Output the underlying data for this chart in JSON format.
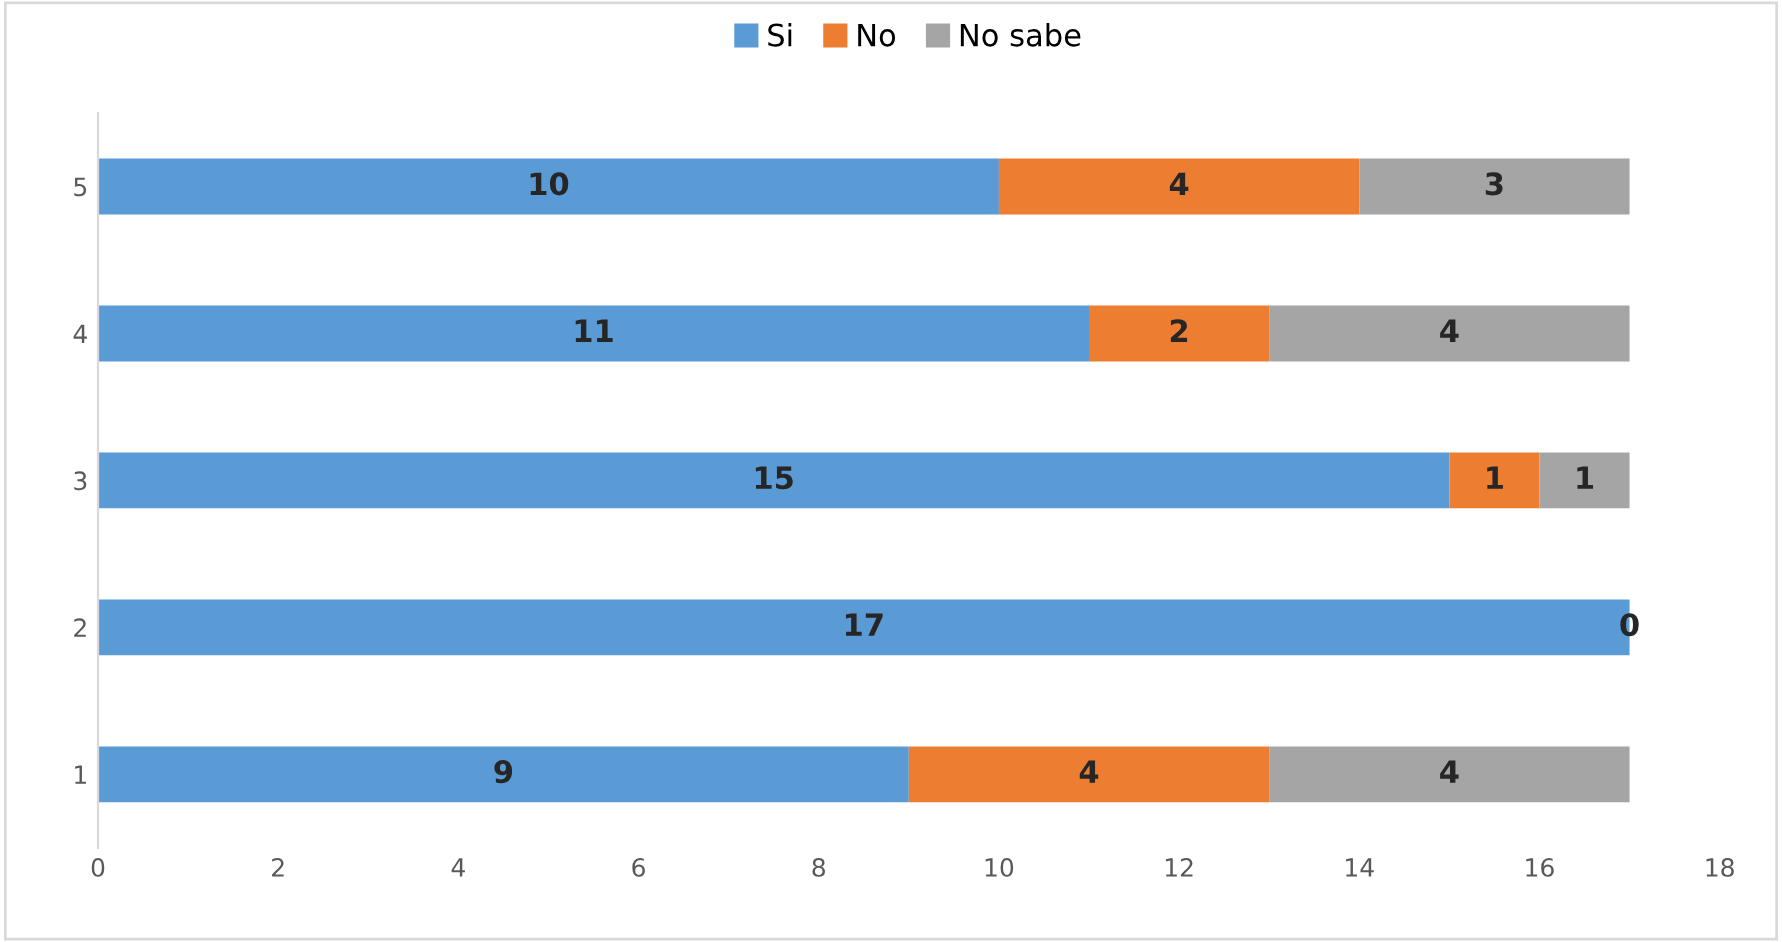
{
  "chart_data": {
    "type": "bar",
    "orientation": "horizontal",
    "stacked": true,
    "categories": [
      "5",
      "4",
      "3",
      "2",
      "1"
    ],
    "series": [
      {
        "name": "Si",
        "color": "#5b9bd5",
        "values": [
          10,
          11,
          15,
          17,
          9
        ],
        "value_labels": [
          "10",
          "11",
          "15",
          "17",
          "9"
        ]
      },
      {
        "name": "No",
        "color": "#ed7d31",
        "values": [
          4,
          2,
          1,
          0,
          4
        ],
        "value_labels": [
          "4",
          "2",
          "1",
          "0",
          "4"
        ]
      },
      {
        "name": "No sabe",
        "color": "#a5a5a5",
        "values": [
          3,
          4,
          1,
          0,
          4
        ],
        "value_labels": [
          "3",
          "4",
          "1",
          null,
          "4"
        ]
      }
    ],
    "xlim": [
      0,
      18
    ],
    "xticks": [
      0,
      2,
      4,
      6,
      8,
      10,
      12,
      14,
      16,
      18
    ],
    "grid": false,
    "legend": "top"
  }
}
